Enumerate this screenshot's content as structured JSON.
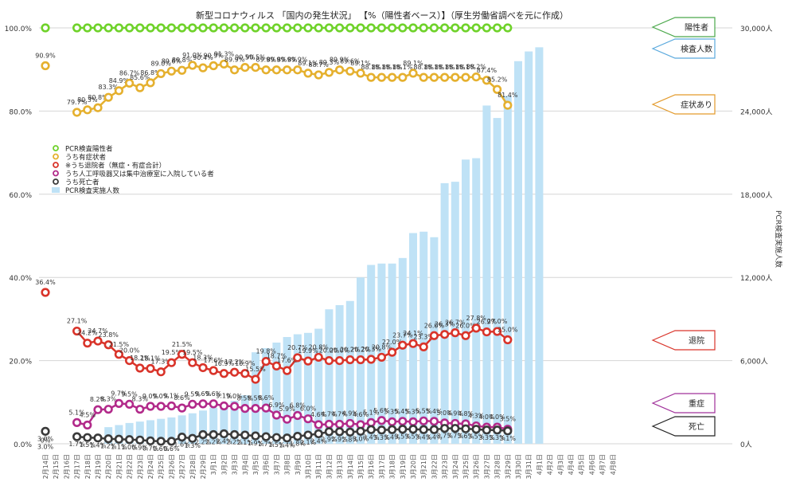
{
  "chart_data": {
    "type": "bar-line-combo",
    "title": "新型コロナウィルス 「国内の発生状況」 【%（陽性者ベース）】（厚生労働省調べを元に作成）",
    "y_left": {
      "min": 0,
      "max": 100,
      "ticks": [
        "0.0%",
        "20.0%",
        "40.0%",
        "60.0%",
        "80.0%",
        "100.0%"
      ]
    },
    "y_right": {
      "label": "PCR検査実施人数",
      "min": 0,
      "max": 30000,
      "ticks": [
        "0人",
        "6,000人",
        "12,000人",
        "18,000人",
        "24,000人",
        "30,000人"
      ]
    },
    "categories": [
      "2月14日",
      "2月15日",
      "2月16日",
      "2月17日",
      "2月18日",
      "2月19日",
      "2月20日",
      "2月21日",
      "2月22日",
      "2月23日",
      "2月24日",
      "2月25日",
      "2月26日",
      "2月27日",
      "2月28日",
      "2月29日",
      "3月1日",
      "3月2日",
      "3月3日",
      "3月4日",
      "3月5日",
      "3月6日",
      "3月7日",
      "3月8日",
      "3月9日",
      "3月10日",
      "3月11日",
      "3月12日",
      "3月13日",
      "3月14日",
      "3月15日",
      "3月16日",
      "3月17日",
      "3月18日",
      "3月19日",
      "3月20日",
      "3月21日",
      "3月22日",
      "3月23日",
      "3月24日",
      "3月25日",
      "3月26日",
      "3月27日",
      "3月28日",
      "3月29日",
      "3月30日",
      "3月31日",
      "4月1日",
      "4月2日",
      "4月3日",
      "4月4日",
      "4月5日",
      "4月6日",
      "4月7日",
      "4月8日"
    ],
    "legend": [
      "PCR検査陽性者",
      "うち有症状者",
      "※うち退院者（無症・有症合計）",
      "うち人工呼吸器又は集中治療室に入院している者",
      "うち死亡者",
      "PCR検査実施人数"
    ],
    "series": [
      {
        "name": "PCR検査陽性者",
        "color": "#6fd22a",
        "values": [
          100,
          null,
          null,
          100,
          100,
          100,
          100,
          100,
          100,
          100,
          100,
          100,
          100,
          100,
          100,
          100,
          100,
          100,
          100,
          100,
          100,
          100,
          100,
          100,
          100,
          100,
          100,
          100,
          100,
          100,
          100,
          100,
          100,
          100,
          100,
          100,
          100,
          100,
          100,
          100,
          100,
          100,
          100,
          100,
          100,
          null,
          null,
          null,
          null,
          null,
          null,
          null,
          null,
          null,
          null
        ]
      },
      {
        "name": "うち有症状者",
        "color": "#e5b02e",
        "values": [
          90.9,
          null,
          null,
          79.7,
          80.3,
          80.8,
          83.3,
          84.9,
          86.7,
          85.6,
          86.8,
          89.0,
          89.6,
          89.8,
          91.0,
          90.4,
          90.9,
          91.3,
          89.9,
          90.5,
          90.5,
          89.9,
          89.9,
          89.9,
          89.9,
          89.1,
          88.7,
          89.3,
          89.9,
          89.6,
          89.1,
          88.1,
          88.1,
          88.1,
          88.1,
          89.1,
          88.1,
          88.1,
          88.1,
          88.1,
          88.1,
          88.2,
          87.4,
          85.2,
          81.4,
          null,
          null,
          null,
          null,
          null,
          null,
          null,
          null,
          null,
          null
        ]
      },
      {
        "name": "※うち退院者（無症・有症合計）",
        "color": "#d9342a",
        "values": [
          36.4,
          null,
          null,
          27.1,
          24.2,
          24.7,
          23.8,
          21.5,
          20.0,
          18.2,
          18.1,
          17.3,
          19.5,
          21.5,
          19.5,
          18.3,
          17.6,
          16.9,
          17.2,
          16.9,
          15.5,
          19.8,
          18.7,
          17.6,
          20.7,
          19.9,
          20.8,
          20.0,
          20.0,
          20.2,
          20.2,
          20.3,
          20.8,
          22.0,
          23.7,
          24.1,
          23.3,
          26.0,
          26.3,
          26.7,
          26.0,
          27.8,
          26.9,
          27.0,
          25.0,
          null,
          null,
          null,
          null,
          null,
          null,
          null,
          null,
          null,
          null
        ]
      },
      {
        "name": "うち人工呼吸器又は集中治療室に入院している者",
        "color": "#b22a8a",
        "values": [
          null,
          null,
          null,
          5.1,
          4.5,
          8.2,
          8.3,
          9.7,
          9.5,
          8.3,
          9.0,
          9.0,
          9.1,
          8.6,
          9.5,
          9.6,
          9.6,
          9.1,
          9.0,
          8.5,
          8.5,
          8.6,
          6.9,
          5.9,
          6.8,
          6.0,
          4.6,
          4.7,
          4.7,
          4.9,
          4.6,
          5.1,
          5.6,
          5.3,
          5.4,
          5.3,
          5.5,
          5.4,
          5.0,
          4.9,
          4.8,
          4.3,
          4.0,
          4.0,
          3.5,
          null,
          null,
          null,
          null,
          null,
          null,
          null,
          null,
          null,
          null
        ]
      },
      {
        "name": "うち死亡者",
        "color": "#3a3a3a",
        "values": [
          3.0,
          null,
          null,
          1.7,
          1.5,
          1.4,
          1.2,
          1.1,
          1.0,
          0.9,
          0.7,
          0.6,
          0.6,
          1.6,
          1.3,
          2.2,
          2.2,
          2.4,
          2.2,
          2.1,
          1.9,
          1.7,
          1.5,
          1.4,
          1.8,
          2.1,
          2.4,
          2.9,
          2.9,
          2.8,
          3.0,
          3.4,
          3.3,
          3.4,
          3.5,
          3.5,
          3.4,
          3.4,
          3.7,
          3.7,
          3.6,
          3.5,
          3.3,
          3.3,
          3.1,
          null,
          null,
          null,
          null,
          null,
          null,
          null,
          null,
          null,
          null
        ]
      }
    ],
    "bars": {
      "name": "PCR検査実施人数",
      "color": "#bfe2f6",
      "values": [
        null,
        null,
        null,
        null,
        null,
        null,
        1200,
        1350,
        1500,
        1600,
        1700,
        1800,
        1900,
        2050,
        2200,
        2400,
        2600,
        2850,
        3100,
        3500,
        6600,
        6900,
        7300,
        7700,
        7900,
        8000,
        8300,
        9700,
        10000,
        10300,
        12000,
        12900,
        13000,
        13000,
        13400,
        15200,
        15300,
        14900,
        18800,
        18900,
        20500,
        20600,
        24400,
        23500,
        25100,
        27600,
        28300,
        28600,
        null,
        null,
        null,
        null,
        null,
        null,
        null
      ]
    },
    "callouts": {
      "positive": "陽性者",
      "tested": "検査人数",
      "symptom": "症状あり",
      "discharged": "退院",
      "severe": "重症",
      "death": "死亡"
    },
    "special_labels": {
      "death_first": "0%",
      "death_first_value": "3.0%"
    }
  }
}
